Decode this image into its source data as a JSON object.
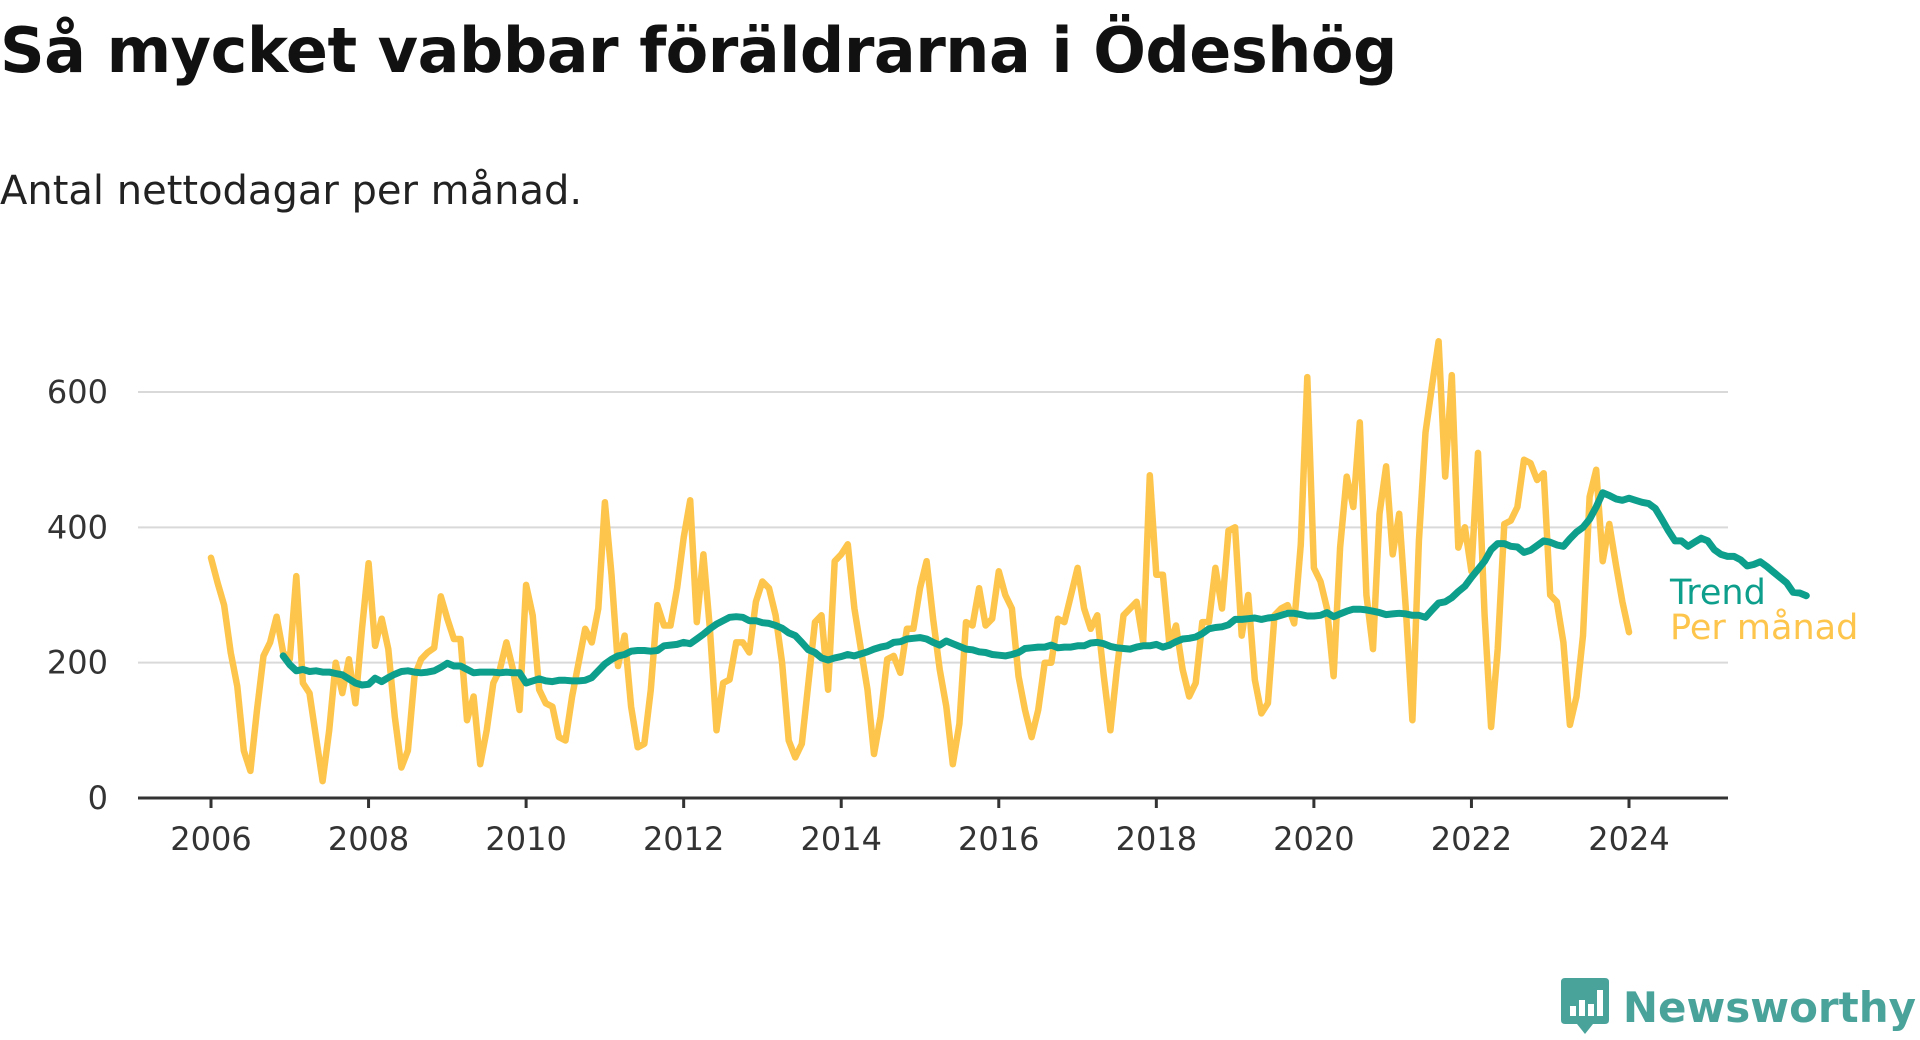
{
  "header": {
    "title": "Så mycket vabbar föräldrarna i Ödeshög",
    "subtitle": "Antal nettodagar per månad."
  },
  "branding": {
    "logo_text": "Newsworthy",
    "logo_icon": "bar-chart-speech-bubble-icon"
  },
  "colors": {
    "monthly": "#FDC54C",
    "trend": "#0E9E8C",
    "grid": "#d9d9d9",
    "axis": "#333333"
  },
  "chart_data": {
    "type": "line",
    "title": "Så mycket vabbar föräldrarna i Ödeshög",
    "subtitle": "Antal nettodagar per månad.",
    "xlim": [
      2006,
      2024.42
    ],
    "ylim": [
      0,
      680
    ],
    "x_ticks": [
      2006,
      2008,
      2010,
      2012,
      2014,
      2016,
      2018,
      2020,
      2022,
      2024
    ],
    "y_ticks": [
      0,
      200,
      400,
      600
    ],
    "grid": "horizontal",
    "x_start": "2006-01",
    "series": [
      {
        "name": "Per månad",
        "color": "#FDC54C",
        "label_position": "end",
        "values": [
          355,
          318,
          285,
          215,
          165,
          70,
          40,
          130,
          210,
          230,
          268,
          215,
          205,
          328,
          170,
          155,
          90,
          25,
          100,
          200,
          155,
          205,
          140,
          250,
          347,
          225,
          265,
          220,
          120,
          45,
          70,
          180,
          205,
          215,
          222,
          298,
          265,
          235,
          235,
          115,
          150,
          50,
          100,
          170,
          190,
          230,
          190,
          130,
          315,
          270,
          160,
          140,
          135,
          90,
          85,
          150,
          200,
          250,
          230,
          280,
          437,
          330,
          195,
          240,
          135,
          75,
          80,
          160,
          285,
          255,
          255,
          310,
          385,
          440,
          260,
          360,
          250,
          100,
          170,
          175,
          230,
          230,
          215,
          290,
          320,
          310,
          270,
          200,
          85,
          60,
          80,
          170,
          260,
          270,
          160,
          350,
          360,
          375,
          280,
          220,
          160,
          65,
          120,
          205,
          210,
          185,
          250,
          250,
          310,
          350,
          265,
          190,
          135,
          50,
          110,
          260,
          255,
          310,
          255,
          265,
          335,
          300,
          280,
          180,
          130,
          90,
          130,
          200,
          200,
          265,
          260,
          300,
          340,
          280,
          250,
          270,
          180,
          100,
          190,
          270,
          280,
          290,
          230,
          477,
          330,
          330,
          225,
          255,
          190,
          150,
          170,
          260,
          260,
          340,
          280,
          395,
          400,
          240,
          300,
          175,
          125,
          140,
          270,
          280,
          285,
          258,
          375,
          622,
          340,
          320,
          280,
          180,
          370,
          475,
          430,
          555,
          300,
          220,
          420,
          490,
          360,
          420,
          280,
          115,
          380,
          540,
          610,
          675,
          475,
          625,
          370,
          400,
          335,
          510,
          270,
          105,
          220,
          405,
          410,
          430,
          500,
          495,
          470,
          480,
          300,
          290,
          230,
          108,
          150,
          240,
          445,
          485,
          350,
          405,
          345,
          290,
          245
        ]
      },
      {
        "name": "Trend",
        "color": "#0E9E8C",
        "label_position": "end",
        "offset_months": 11,
        "values": [
          210,
          197,
          188,
          190,
          187,
          188,
          186,
          186,
          184,
          182,
          176,
          170,
          167,
          168,
          177,
          172,
          178,
          183,
          187,
          188,
          186,
          185,
          186,
          188,
          193,
          199,
          195,
          195,
          190,
          185,
          186,
          186,
          186,
          185,
          186,
          185,
          185,
          170,
          173,
          176,
          173,
          172,
          174,
          174,
          173,
          173,
          174,
          178,
          188,
          198,
          205,
          210,
          212,
          217,
          218,
          218,
          217,
          218,
          225,
          226,
          227,
          230,
          228,
          235,
          242,
          250,
          257,
          262,
          267,
          268,
          267,
          262,
          262,
          259,
          258,
          255,
          251,
          244,
          240,
          230,
          219,
          215,
          207,
          204,
          207,
          209,
          212,
          210,
          213,
          216,
          220,
          223,
          225,
          230,
          231,
          235,
          236,
          237,
          235,
          230,
          226,
          232,
          228,
          224,
          220,
          219,
          216,
          215,
          212,
          211,
          210,
          212,
          215,
          221,
          222,
          223,
          223,
          226,
          222,
          223,
          223,
          225,
          225,
          229,
          230,
          228,
          224,
          222,
          221,
          220,
          223,
          225,
          225,
          227,
          223,
          226,
          231,
          235,
          236,
          238,
          243,
          250,
          252,
          253,
          256,
          264,
          264,
          265,
          266,
          264,
          266,
          267,
          270,
          273,
          273,
          271,
          269,
          269,
          270,
          274,
          268,
          272,
          276,
          279,
          279,
          278,
          276,
          274,
          271,
          272,
          273,
          272,
          270,
          270,
          267,
          278,
          288,
          290,
          296,
          305,
          313,
          326,
          338,
          350,
          367,
          376,
          376,
          372,
          371,
          363,
          366,
          373,
          380,
          378,
          374,
          372,
          383,
          393,
          400,
          412,
          430,
          451,
          447,
          442,
          440,
          443,
          440,
          437,
          435,
          428,
          412,
          395,
          380,
          380,
          372,
          378,
          384,
          380,
          367,
          360,
          357,
          357,
          352,
          343,
          345,
          349,
          342,
          334,
          326,
          318,
          304,
          303,
          299
        ]
      }
    ]
  }
}
